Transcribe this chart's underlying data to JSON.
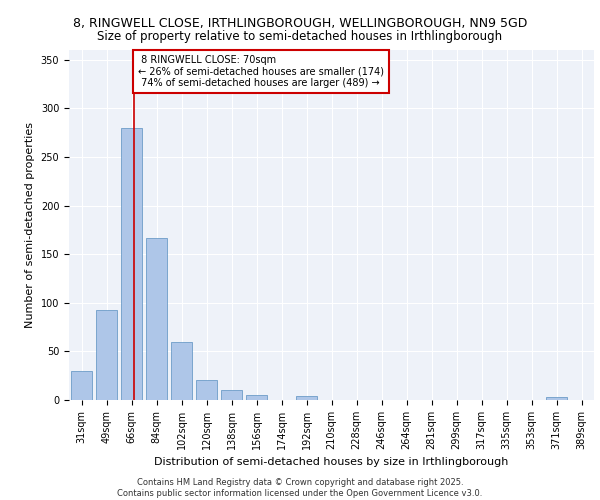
{
  "title_line1": "8, RINGWELL CLOSE, IRTHLINGBOROUGH, WELLINGBOROUGH, NN9 5GD",
  "title_line2": "Size of property relative to semi-detached houses in Irthlingborough",
  "xlabel": "Distribution of semi-detached houses by size in Irthlingborough",
  "ylabel": "Number of semi-detached properties",
  "categories": [
    "31sqm",
    "49sqm",
    "66sqm",
    "84sqm",
    "102sqm",
    "120sqm",
    "138sqm",
    "156sqm",
    "174sqm",
    "192sqm",
    "210sqm",
    "228sqm",
    "246sqm",
    "264sqm",
    "281sqm",
    "299sqm",
    "317sqm",
    "335sqm",
    "353sqm",
    "371sqm",
    "389sqm"
  ],
  "values": [
    30,
    93,
    280,
    167,
    60,
    21,
    10,
    5,
    0,
    4,
    0,
    0,
    0,
    0,
    0,
    0,
    0,
    0,
    0,
    3,
    0
  ],
  "bar_color": "#aec6e8",
  "bar_edge_color": "#5a8fc0",
  "property_label": "8 RINGWELL CLOSE: 70sqm",
  "pct_smaller": 26,
  "count_smaller": 174,
  "pct_larger": 74,
  "count_larger": 489,
  "vline_position": 2.1,
  "annotation_box_color": "#ffffff",
  "annotation_box_edge_color": "#cc0000",
  "footer_line1": "Contains HM Land Registry data © Crown copyright and database right 2025.",
  "footer_line2": "Contains public sector information licensed under the Open Government Licence v3.0.",
  "background_color": "#eef2f9",
  "ylim": [
    0,
    360
  ],
  "grid_color": "#ffffff",
  "title_fontsize": 9,
  "subtitle_fontsize": 8.5,
  "tick_fontsize": 7,
  "label_fontsize": 8,
  "annotation_fontsize": 7,
  "footer_fontsize": 6
}
